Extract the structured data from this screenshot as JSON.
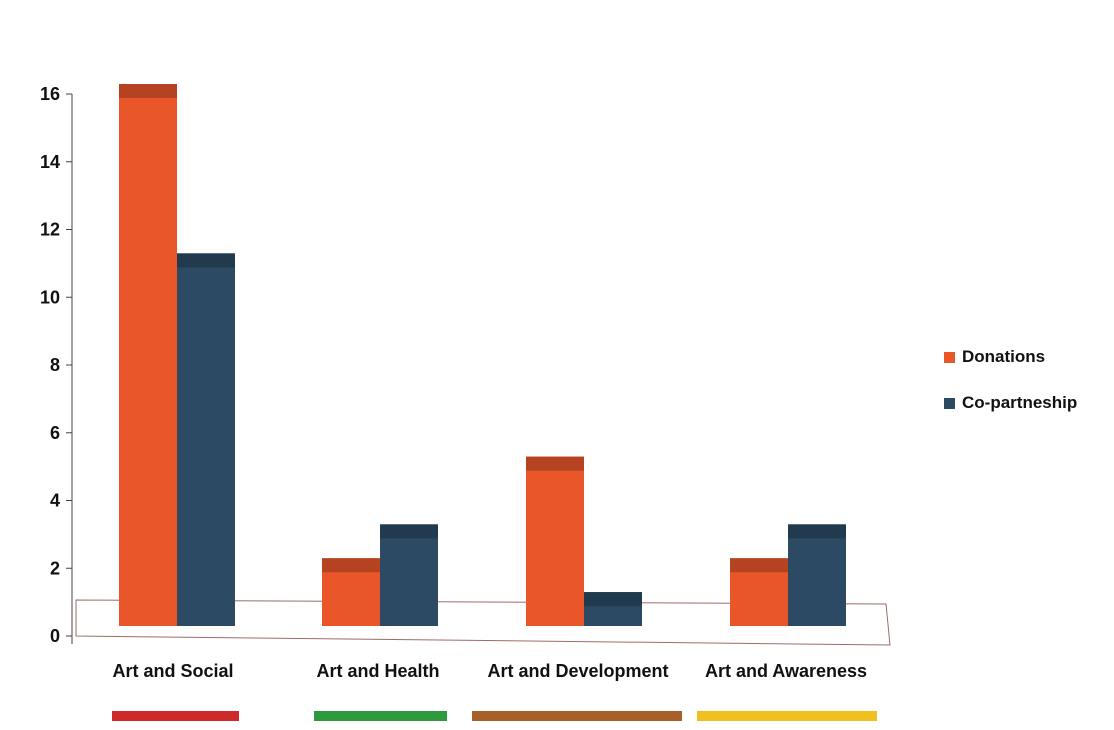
{
  "chart_data": {
    "type": "bar",
    "categories": [
      "Art and Social",
      "Art and Health",
      "Art and  Development",
      "Art and Awareness"
    ],
    "series": [
      {
        "name": "Donations",
        "values": [
          16,
          2,
          5,
          2
        ],
        "color": "#e8562a"
      },
      {
        "name": "Co-partneship",
        "values": [
          11,
          3,
          1,
          3
        ],
        "color": "#2c4a63"
      }
    ],
    "category_colors": [
      "#cf2a2a",
      "#2e9a3e",
      "#a8602a",
      "#f0c11e"
    ],
    "yticks": [
      "0",
      "2",
      "4",
      "6",
      "8",
      "10",
      "12",
      "14",
      "16"
    ],
    "ylim": [
      0,
      16
    ],
    "legend_position": "right"
  }
}
